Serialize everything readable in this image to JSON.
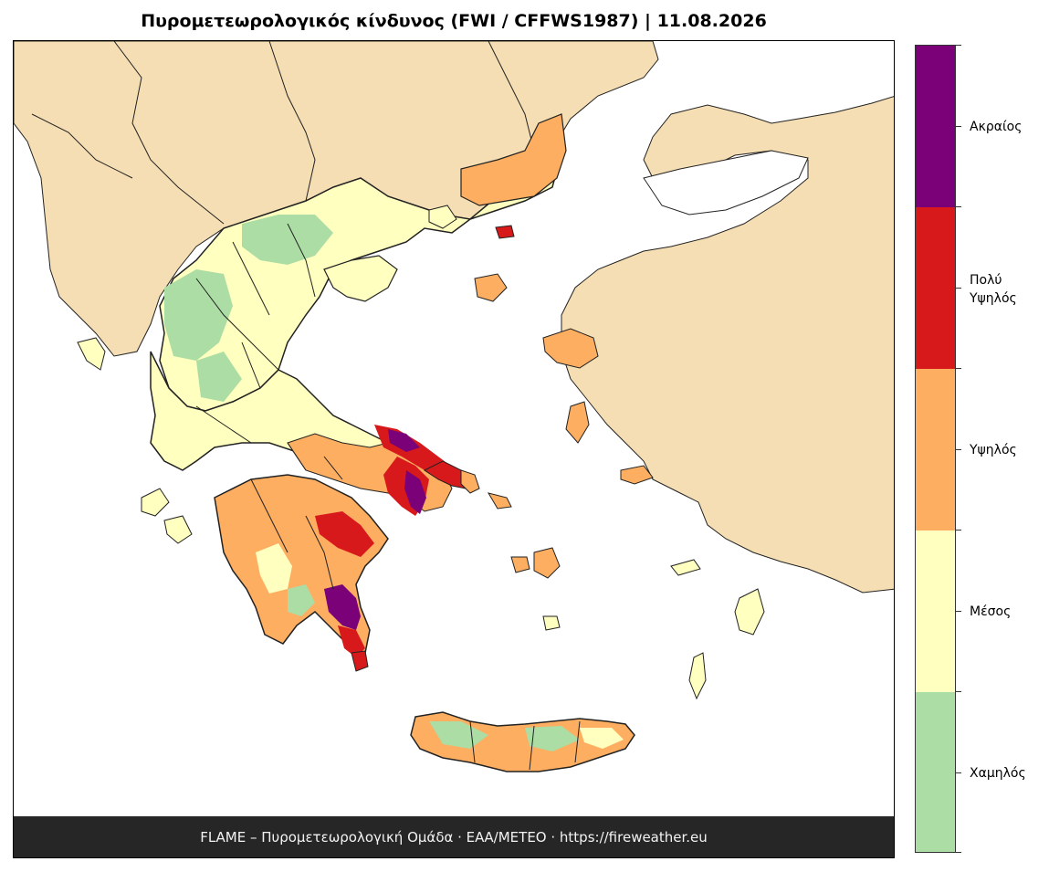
{
  "title": "Πυρομετεωρολογικός κίνδυνος (FWI / CFFWS1987)  |  11.08.2026",
  "footer": "FLAME – Πυρομετεωρολογική Ομάδα · ΕΑΑ/METEO · https://fireweather.eu",
  "legend": [
    {
      "label": "Ακραίος",
      "color": "#7a0177"
    },
    {
      "label": "Πολύ\nΥψηλός",
      "color": "#d7191c"
    },
    {
      "label": "Υψηλός",
      "color": "#fdae61"
    },
    {
      "label": "Μέσος",
      "color": "#ffffbf"
    },
    {
      "label": "Χαμηλός",
      "color": "#abdda4"
    }
  ],
  "colors": {
    "land_outside": "#f5deb3",
    "sea": "#ffffff",
    "border": "#111111"
  }
}
